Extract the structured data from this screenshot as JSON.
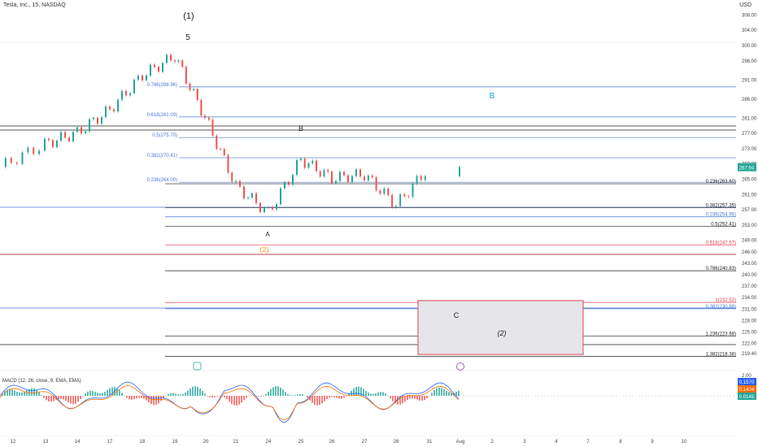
{
  "header": {
    "symbol": "Tesla, Inc., 15, NASDAQ",
    "currency": "USD"
  },
  "colors": {
    "up": "#26a69a",
    "down": "#ef5350",
    "blue": "#4a78d9",
    "red": "#e04050",
    "black": "#222222",
    "orange": "#f59a23",
    "teal": "#1aa0c8",
    "purple": "#8e44ad"
  },
  "chart_data": {
    "type": "line",
    "title": "",
    "price_axis": {
      "ticks": [
        "308.00",
        "304.00",
        "300.00",
        "296.00",
        "291.00",
        "286.00",
        "281.00",
        "277.00",
        "273.00",
        "269.00",
        "265.00",
        "261.00",
        "257.00",
        "253.00",
        "249.00",
        "246.00",
        "243.00",
        "240.00",
        "237.00",
        "234.00",
        "231.00",
        "228.00",
        "225.00",
        "222.00",
        "219.40"
      ],
      "current_price": "267.94",
      "ylim": [
        217,
        310
      ]
    },
    "time_axis": {
      "ticks": [
        "12",
        "13",
        "14",
        "17",
        "18",
        "19",
        "20",
        "21",
        "24",
        "25",
        "26",
        "27",
        "28",
        "31",
        "Aug",
        "2",
        "3",
        "4",
        "7",
        "8",
        "9",
        "10"
      ]
    },
    "series": [
      {
        "x": [
          "12",
          "13",
          "14",
          "17",
          "18",
          "19",
          "20",
          "21",
          "24",
          "25",
          "26",
          "27",
          "28",
          "31"
        ],
        "values": [
          268,
          274,
          277,
          283,
          292,
          297,
          281,
          263,
          256,
          270,
          265,
          266,
          258,
          268
        ]
      }
    ],
    "wave_labels": [
      {
        "text": "(1)",
        "color": "black"
      },
      {
        "text": "5",
        "color": "black"
      },
      {
        "text": "B",
        "color": "black"
      },
      {
        "text": "B",
        "color": "teal"
      },
      {
        "text": "A",
        "color": "black"
      },
      {
        "text": "(2)",
        "color": "orange"
      },
      {
        "text": "C",
        "color": "black"
      },
      {
        "text": "(2)",
        "color": "black"
      }
    ],
    "fib_levels": [
      {
        "label": "0.786(288.96)",
        "price": 288.96,
        "color": "blue",
        "side": "left"
      },
      {
        "label": "0.618(281.09)",
        "price": 281.09,
        "color": "blue",
        "side": "left"
      },
      {
        "label": "0.5(275.70)",
        "price": 275.7,
        "color": "blue",
        "side": "left"
      },
      {
        "label": "0.382(270.41)",
        "price": 270.41,
        "color": "blue",
        "side": "left"
      },
      {
        "label": "0.236(264.00)",
        "price": 264.0,
        "color": "blue",
        "side": "left"
      },
      {
        "label": "0.236(263.60)",
        "price": 263.6,
        "color": "black",
        "side": "right"
      },
      {
        "label": "0.382(257.35)",
        "price": 257.35,
        "color": "black",
        "side": "right"
      },
      {
        "label": "0.236(254.95)",
        "price": 254.95,
        "color": "blue",
        "side": "right"
      },
      {
        "label": "0.5(252.41)",
        "price": 252.41,
        "color": "black",
        "side": "right"
      },
      {
        "label": "0.618(247.57)",
        "price": 247.57,
        "color": "red",
        "side": "right"
      },
      {
        "label": "0.786(240.83)",
        "price": 240.83,
        "color": "black",
        "side": "right"
      },
      {
        "label": "1(232.52)",
        "price": 232.52,
        "color": "red",
        "side": "right"
      },
      {
        "label": "0.382(230.88)",
        "price": 230.88,
        "color": "blue",
        "side": "right"
      },
      {
        "label": "1.236(223.68)",
        "price": 223.68,
        "color": "black",
        "side": "right"
      },
      {
        "label": "1.382(218.38)",
        "price": 218.38,
        "color": "black",
        "side": "right"
      }
    ],
    "macd": {
      "label": "MACD (12, 26, close, 9, EMA, EMA)",
      "axis_top": "2.00",
      "values": [
        "0.1570",
        "0.1424",
        "0.0145"
      ]
    }
  }
}
